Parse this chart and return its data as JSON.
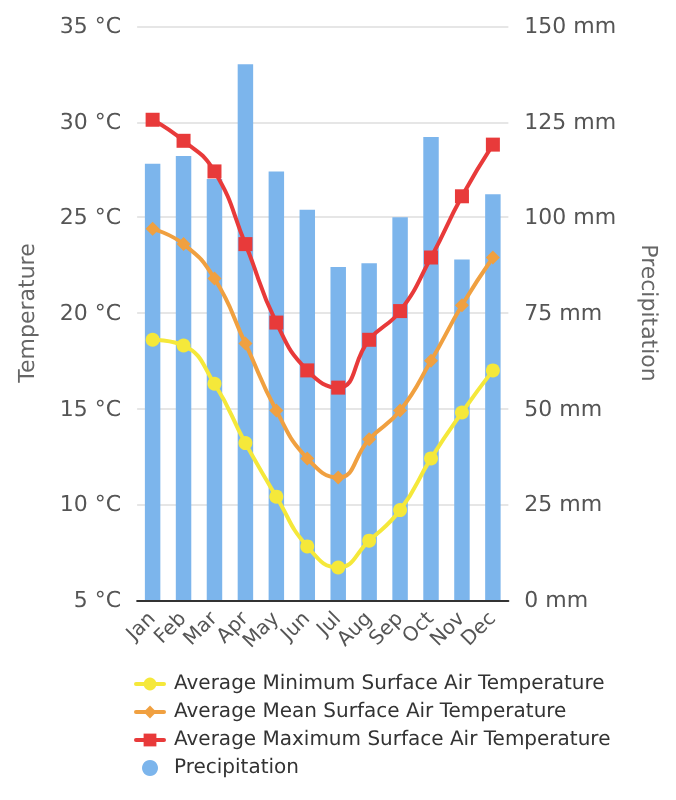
{
  "chart_data": {
    "type": "line",
    "categories": [
      "Jan",
      "Feb",
      "Mar",
      "Apr",
      "May",
      "Jun",
      "Jul",
      "Aug",
      "Sep",
      "Oct",
      "Nov",
      "Dec"
    ],
    "series": [
      {
        "name": "Average Minimum Surface Air Temperature",
        "color": "#f5e83a",
        "marker": "circle",
        "values": [
          18.6,
          18.3,
          16.3,
          13.2,
          10.4,
          7.8,
          6.7,
          8.1,
          9.7,
          12.4,
          14.8,
          17.0
        ]
      },
      {
        "name": "Average Mean Surface Air Temperature",
        "color": "#f0a040",
        "marker": "diamond",
        "values": [
          24.4,
          23.6,
          21.8,
          18.4,
          14.9,
          12.4,
          11.4,
          13.4,
          14.9,
          17.5,
          20.4,
          22.9
        ]
      },
      {
        "name": "Average Maximum Surface Air Temperature",
        "color": "#e83a3a",
        "marker": "square",
        "values": [
          30.1,
          29.0,
          27.4,
          23.6,
          19.5,
          17.0,
          16.1,
          18.6,
          20.1,
          22.9,
          26.1,
          28.8
        ]
      },
      {
        "name": "Precipitation",
        "type": "bar",
        "axis": "y2",
        "color": "#7cb5ec",
        "values": [
          114,
          116,
          110,
          140,
          112,
          102,
          87,
          88,
          100,
          121,
          89,
          106
        ]
      }
    ],
    "ylabel": "Temperature",
    "y2label": "Precipitation",
    "ylim": [
      5,
      35
    ],
    "yticks": [
      {
        "value": 5,
        "label": "5 °C"
      },
      {
        "value": 10,
        "label": "10 °C"
      },
      {
        "value": 15,
        "label": "15 °C"
      },
      {
        "value": 20,
        "label": "20 °C"
      },
      {
        "value": 25,
        "label": "25 °C"
      },
      {
        "value": 30,
        "label": "30 °C"
      },
      {
        "value": 35,
        "label": "35 °C"
      }
    ],
    "y2lim": [
      0,
      150
    ],
    "y2ticks": [
      {
        "value": 0,
        "label": "0 mm"
      },
      {
        "value": 25,
        "label": "25 mm"
      },
      {
        "value": 50,
        "label": "50 mm"
      },
      {
        "value": 75,
        "label": "75 mm"
      },
      {
        "value": 100,
        "label": "100 mm"
      },
      {
        "value": 125,
        "label": "125 mm"
      },
      {
        "value": 150,
        "label": "150 mm"
      }
    ],
    "grid": "y",
    "legend": "bottom"
  }
}
